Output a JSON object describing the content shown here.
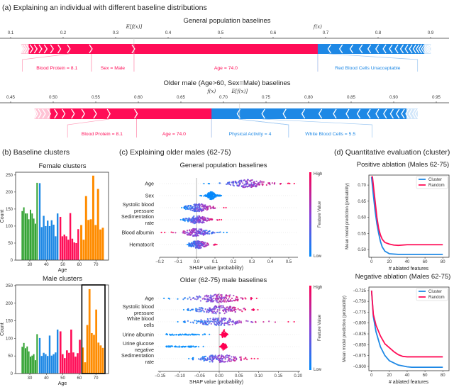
{
  "colors": {
    "positive": "#ff0d57",
    "negative": "#1e88e5",
    "positive_light": "#ffc3d5",
    "negative_light": "#d1e6fa",
    "green": "#2ca02c",
    "blue": "#1e88e5",
    "pink": "#ff0d57",
    "orange": "#ff8c00",
    "low": "#008bfb",
    "high": "#ff0052"
  },
  "panel_a": {
    "title": "(a) Explaining an individual with different baseline distributions",
    "force_plots": [
      {
        "title": "General population baselines",
        "ticks": [
          0.1,
          0.2,
          0.3,
          0.4,
          0.5,
          0.6,
          0.7,
          0.8,
          0.9
        ],
        "tick_labels": [
          "0.1",
          "0.2",
          "0.3",
          "0.4",
          "0.5",
          "0.6",
          "0.7",
          "0.8",
          "0.9"
        ],
        "base_value": 0.335,
        "base_label": "E[f(x)]",
        "output_value": 0.685,
        "output_label": "f(x)",
        "positive": [
          {
            "label": "Age = 74.0",
            "value": 0.35
          },
          {
            "label": "Sex = Male",
            "value": 0.081
          },
          {
            "label": "Blood Protein = 8.1",
            "value": 0.042
          }
        ],
        "positive_other": [
          0.018,
          0.014,
          0.012,
          0.01,
          0.009,
          0.008,
          0.007,
          0.005,
          0.004,
          0.003,
          0.002
        ],
        "negative": [
          {
            "label": "Red Blood Cells Unacceptable",
            "value": 0.021
          }
        ],
        "negative_other": [
          0.022,
          0.02,
          0.018,
          0.016,
          0.015,
          0.014,
          0.012,
          0.011,
          0.01,
          0.009,
          0.008,
          0.007,
          0.006,
          0.005,
          0.005,
          0.004,
          0.004,
          0.003,
          0.003,
          0.002
        ]
      },
      {
        "title": "Older male (Age>60, Sex=Male) baselines",
        "ticks": [
          0.45,
          0.5,
          0.55,
          0.6,
          0.65,
          0.7,
          0.75,
          0.8,
          0.85,
          0.9,
          0.95
        ],
        "tick_labels": [
          "0.45",
          "0.50",
          "0.55",
          "0.60",
          "0.65",
          "0.70",
          "0.75",
          "0.80",
          "0.85",
          "0.90",
          "0.95"
        ],
        "base_value": 0.719,
        "base_label": "E[f(x)]",
        "output_value": 0.686,
        "output_label": "f(x)",
        "positive": [
          {
            "label": "Age = 74.0",
            "value": 0.088
          },
          {
            "label": "Blood Protein = 8.1",
            "value": 0.032
          }
        ],
        "positive_other": [
          0.016,
          0.014,
          0.012,
          0.011,
          0.009,
          0.008,
          0.006,
          0.005,
          0.004,
          0.003
        ],
        "negative": [
          {
            "label": "Physical Activity = 4",
            "value": 0.031
          },
          {
            "label": "White Blood Cells = 5.5",
            "value": 0.029
          }
        ],
        "negative_other": [
          0.025,
          0.022,
          0.02,
          0.017,
          0.015,
          0.013,
          0.012,
          0.01,
          0.009,
          0.008,
          0.007,
          0.006,
          0.005,
          0.004,
          0.004,
          0.003,
          0.002
        ]
      }
    ]
  },
  "panel_b": {
    "title": "(b) Baseline clusters"
  },
  "panel_c": {
    "title": "(c) Explaining older males (62-75)",
    "colorbar": {
      "high": "High",
      "low": "Low",
      "label": "Feature Value"
    }
  },
  "panel_d": {
    "title": "(d) Quantitative evaluation (cluster)"
  },
  "chart_data": [
    {
      "type": "bar",
      "id": "female",
      "title": "Female clusters",
      "xlabel": "Age",
      "ylabel": "Count",
      "ylim": [
        0,
        258
      ],
      "xlim": [
        22,
        78
      ],
      "yticks": [
        0,
        50,
        100,
        150,
        200,
        250
      ],
      "xticks": [
        30,
        40,
        50,
        60,
        70
      ],
      "clusters": [
        {
          "color": "green",
          "age_range": [
            25,
            35
          ],
          "values": [
            144,
            155,
            137,
            137,
            120,
            148,
            137,
            122,
            107,
            227
          ]
        },
        {
          "color": "blue",
          "age_range": [
            35.5,
            47.5
          ],
          "values": [
            226,
            97,
            130,
            100,
            116,
            100,
            117,
            104,
            70,
            137
          ]
        },
        {
          "color": "pink",
          "age_range": [
            48,
            60
          ],
          "values": [
            127,
            70,
            75,
            70,
            60,
            138,
            63,
            52,
            50,
            91
          ]
        },
        {
          "color": "orange",
          "age_range": [
            60.5,
            75
          ],
          "values": [
            103,
            60,
            188,
            118,
            120,
            248,
            103,
            209,
            90,
            95
          ]
        }
      ]
    },
    {
      "type": "bar",
      "id": "male",
      "title": "Male clusters",
      "xlabel": "Age",
      "ylabel": "Count",
      "ylim": [
        0,
        252
      ],
      "xlim": [
        22,
        78
      ],
      "yticks": [
        0,
        50,
        100,
        150,
        200,
        250
      ],
      "xticks": [
        30,
        40,
        50,
        60,
        70
      ],
      "highlight_age_range": [
        61.5,
        75.5
      ],
      "clusters": [
        {
          "color": "green",
          "age_range": [
            25,
            35
          ],
          "values": [
            76,
            87,
            72,
            77,
            63,
            48,
            51,
            55,
            38,
            112
          ]
        },
        {
          "color": "blue",
          "age_range": [
            35.5,
            47.5
          ],
          "values": [
            101,
            50,
            59,
            55,
            50,
            108,
            51,
            55,
            60,
            125
          ]
        },
        {
          "color": "pink",
          "age_range": [
            48,
            61
          ],
          "values": [
            120,
            55,
            44,
            66,
            59,
            125,
            60,
            48,
            58,
            96
          ]
        },
        {
          "color": "orange",
          "age_range": [
            61.5,
            75
          ],
          "values": [
            74,
            32,
            138,
            240,
            115,
            110,
            182,
            88,
            80,
            73
          ]
        }
      ]
    },
    {
      "type": "scatter",
      "id": "beeswarm-general",
      "title": "General population baselines",
      "xlabel": "SHAP value (probability)",
      "xlim": [
        -0.2,
        0.55
      ],
      "xticks": [
        -0.2,
        -0.1,
        0.0,
        0.1,
        0.2,
        0.3,
        0.4,
        0.5
      ],
      "xtick_labels": [
        "−0.2",
        "−0.1",
        "0.0",
        "0.1",
        "0.2",
        "0.3",
        "0.4",
        "0.5"
      ],
      "features": [
        {
          "name": "Age",
          "lines": [
            "Age"
          ],
          "min": 0.04,
          "max": 0.53,
          "center": 0.28,
          "sd": 0.05,
          "mode": "normal"
        },
        {
          "name": "Sex",
          "lines": [
            "Sex"
          ],
          "min": 0.02,
          "max": 0.135,
          "center": 0.08,
          "sd": 0.012,
          "mode": "low"
        },
        {
          "name": "Systolic blood pressure",
          "lines": [
            "Systolic blood",
            "pressure"
          ],
          "min": -0.08,
          "max": 0.16,
          "center": 0.01,
          "sd": 0.035,
          "mode": "normal"
        },
        {
          "name": "Sedimentation rate",
          "lines": [
            "Sedimentation",
            "rate"
          ],
          "min": -0.085,
          "max": 0.135,
          "center": 0.003,
          "sd": 0.03,
          "mode": "normal"
        },
        {
          "name": "Blood albumin",
          "lines": [
            "Blood albumin"
          ],
          "min": -0.19,
          "max": 0.165,
          "center": 0.0,
          "sd": 0.035,
          "mode": "reverse"
        },
        {
          "name": "Hematocrit",
          "lines": [
            "Hematocrit"
          ],
          "min": -0.05,
          "max": 0.11,
          "center": 0.005,
          "sd": 0.025,
          "mode": "normal"
        }
      ]
    },
    {
      "type": "scatter",
      "id": "beeswarm-older",
      "title": "Older (62-75) male baselines",
      "xlabel": "SHAP value (probability)",
      "xlim": [
        -0.155,
        0.205
      ],
      "xticks": [
        -0.15,
        -0.1,
        -0.05,
        0.0,
        0.05,
        0.1,
        0.15,
        0.2
      ],
      "xtick_labels": [
        "−0.15",
        "−0.10",
        "−0.05",
        "0.00",
        "0.05",
        "0.10",
        "0.15",
        "0.20"
      ],
      "features": [
        {
          "name": "Age",
          "lines": [
            "Age"
          ],
          "min": -0.14,
          "max": 0.095,
          "center": 0.0,
          "sd": 0.035,
          "mode": "normal"
        },
        {
          "name": "Systolic blood pressure",
          "lines": [
            "Systolic blood",
            "pressure"
          ],
          "min": -0.09,
          "max": 0.098,
          "center": 0.0,
          "sd": 0.03,
          "mode": "normal"
        },
        {
          "name": "White blood cells",
          "lines": [
            "White blood",
            "cells"
          ],
          "min": -0.105,
          "max": 0.19,
          "center": 0.0,
          "sd": 0.03,
          "mode": "normal"
        },
        {
          "name": "Urine albumin",
          "lines": [
            "Urine albumin"
          ],
          "min": -0.135,
          "max": -0.02,
          "center": 0.012,
          "sd": 0.004,
          "mode": "split"
        },
        {
          "name": "Urine glucose negative",
          "lines": [
            "Urine glucose",
            "negative"
          ],
          "min": -0.137,
          "max": -0.035,
          "center": 0.012,
          "sd": 0.004,
          "mode": "split"
        },
        {
          "name": "Sedimentation rate",
          "lines": [
            "Sedimentation",
            "rate"
          ],
          "min": -0.077,
          "max": 0.098,
          "center": 0.0,
          "sd": 0.028,
          "mode": "normal"
        }
      ]
    },
    {
      "type": "line",
      "id": "positive-ablation",
      "title": "Positive ablation (Males 62-75)",
      "xlabel": "# ablated features",
      "ylabel": "Mean model prediction (probability)",
      "xlim": [
        -3,
        87
      ],
      "ylim": [
        0.476,
        0.731
      ],
      "legend": "top-right",
      "xticks": [
        0,
        20,
        40,
        60,
        80
      ],
      "yticks": [
        0.5,
        0.55,
        0.6,
        0.65,
        0.7
      ],
      "ytick_labels": [
        "0.50",
        "0.55",
        "0.60",
        "0.65",
        "0.70"
      ],
      "series": [
        {
          "name": "Cluster",
          "color": "#1e88e5",
          "x": [
            0,
            2,
            4,
            6,
            8,
            10,
            12,
            15,
            20,
            30,
            80
          ],
          "y": [
            0.725,
            0.67,
            0.62,
            0.58,
            0.55,
            0.525,
            0.508,
            0.495,
            0.487,
            0.485,
            0.485
          ]
        },
        {
          "name": "Random",
          "color": "#ff0d57",
          "x": [
            0,
            1,
            2,
            4,
            6,
            8,
            10,
            12,
            15,
            20,
            25,
            30,
            40,
            80
          ],
          "y": [
            0.727,
            0.725,
            0.7,
            0.65,
            0.6,
            0.565,
            0.545,
            0.532,
            0.522,
            0.517,
            0.514,
            0.513,
            0.515,
            0.515
          ]
        }
      ]
    },
    {
      "type": "line",
      "id": "negative-ablation",
      "title": "Negative ablation (Males 62-75)",
      "xlabel": "# ablated features",
      "ylabel": "Mean model prediction (probability)",
      "xlim": [
        -3,
        87
      ],
      "ylim": [
        -0.91,
        -0.717
      ],
      "legend": "top-right",
      "xticks": [
        0,
        20,
        40,
        60,
        80
      ],
      "yticks": [
        -0.725,
        -0.75,
        -0.775,
        -0.8,
        -0.825,
        -0.85,
        -0.875,
        -0.9
      ],
      "ytick_labels": [
        "−0.725",
        "−0.750",
        "−0.775",
        "−0.800",
        "−0.825",
        "−0.850",
        "−0.875",
        "−0.900"
      ],
      "series": [
        {
          "name": "Cluster",
          "color": "#1e88e5",
          "x": [
            0,
            2,
            5,
            10,
            15,
            20,
            30,
            40,
            45,
            80
          ],
          "y": [
            -0.725,
            -0.785,
            -0.82,
            -0.855,
            -0.875,
            -0.887,
            -0.897,
            -0.901,
            -0.902,
            -0.902
          ]
        },
        {
          "name": "Random",
          "color": "#ff0d57",
          "x": [
            0,
            2,
            5,
            10,
            15,
            20,
            25,
            30,
            35,
            40,
            80
          ],
          "y": [
            -0.725,
            -0.78,
            -0.805,
            -0.83,
            -0.848,
            -0.857,
            -0.866,
            -0.873,
            -0.877,
            -0.878,
            -0.878
          ]
        }
      ]
    }
  ]
}
